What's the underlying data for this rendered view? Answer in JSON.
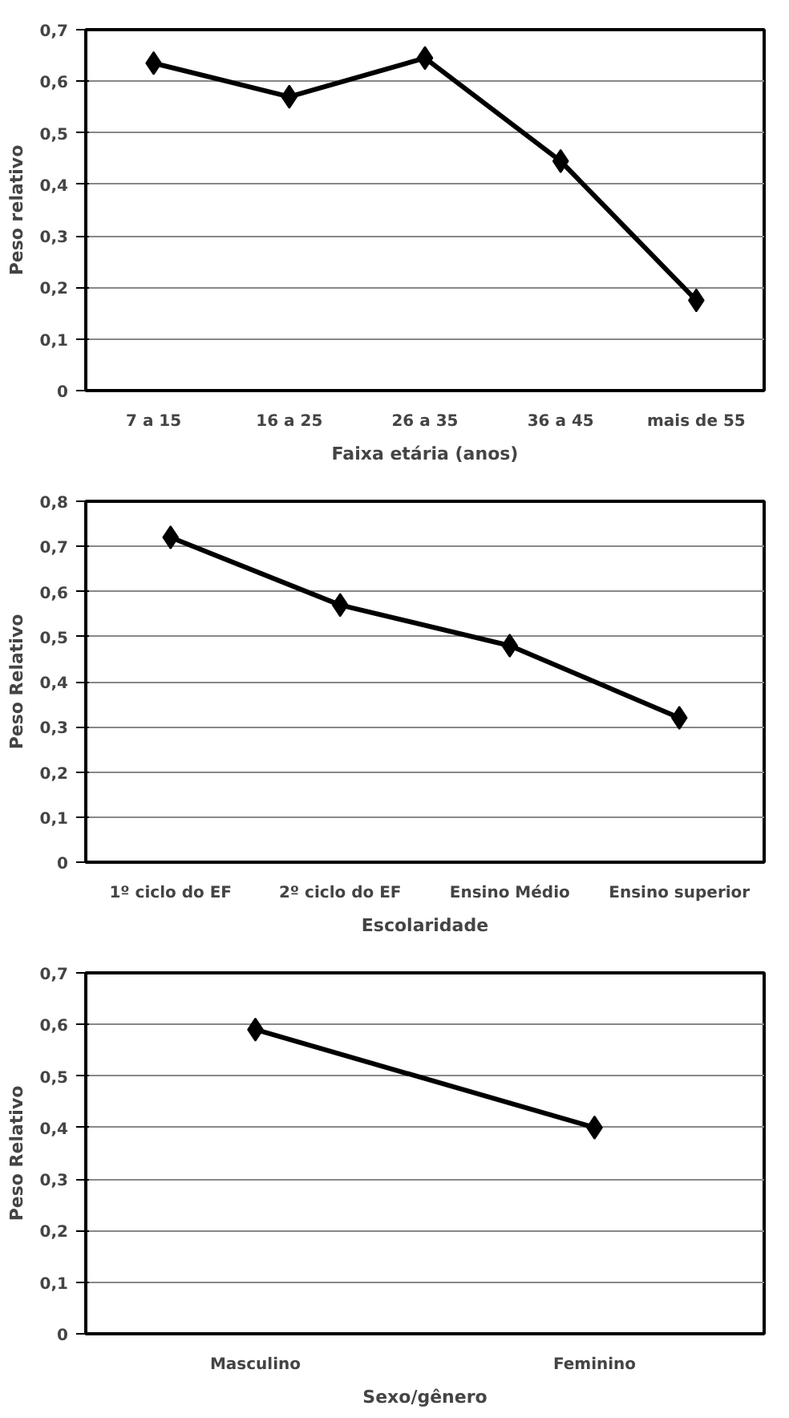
{
  "chart_data": [
    {
      "type": "line",
      "categories": [
        "7 a 15",
        "16 a 25",
        "26 a 35",
        "36 a 45",
        "mais de 55"
      ],
      "xlabel": "Faixa etária (anos)",
      "ylabel": "Peso relativo",
      "series": [
        {
          "color": "#000000",
          "values": [
            0.635,
            0.57,
            0.645,
            0.445,
            0.175
          ]
        }
      ],
      "ylim": [
        0,
        0.7
      ],
      "yticks": [
        {
          "value": 0,
          "label": "0"
        },
        {
          "value": 0.1,
          "label": "0,1"
        },
        {
          "value": 0.2,
          "label": "0,2"
        },
        {
          "value": 0.3,
          "label": "0,3"
        },
        {
          "value": 0.4,
          "label": "0,4"
        },
        {
          "value": 0.5,
          "label": "0,5"
        },
        {
          "value": 0.6,
          "label": "0,6"
        },
        {
          "value": 0.7,
          "label": "0,7"
        }
      ],
      "grid": "y",
      "marker": "diamond",
      "line_style": "solid"
    },
    {
      "type": "line",
      "categories": [
        "1º ciclo do EF",
        "2º ciclo do EF",
        "Ensino Médio",
        "Ensino superior"
      ],
      "xlabel": "Escolaridade",
      "ylabel": "Peso Relativo",
      "series": [
        {
          "color": "#000000",
          "values": [
            0.72,
            0.57,
            0.48,
            0.32
          ]
        }
      ],
      "ylim": [
        0,
        0.8
      ],
      "yticks": [
        {
          "value": 0,
          "label": "0"
        },
        {
          "value": 0.1,
          "label": "0,1"
        },
        {
          "value": 0.2,
          "label": "0,2"
        },
        {
          "value": 0.3,
          "label": "0,3"
        },
        {
          "value": 0.4,
          "label": "0,4"
        },
        {
          "value": 0.5,
          "label": "0,5"
        },
        {
          "value": 0.6,
          "label": "0,6"
        },
        {
          "value": 0.7,
          "label": "0,7"
        },
        {
          "value": 0.8,
          "label": "0,8"
        }
      ],
      "grid": "y",
      "marker": "diamond",
      "line_style": "solid"
    },
    {
      "type": "line",
      "categories": [
        "Masculino",
        "Feminino"
      ],
      "xlabel": "Sexo/gênero",
      "ylabel": "Peso Relativo",
      "series": [
        {
          "color": "#000000",
          "values": [
            0.59,
            0.4
          ]
        }
      ],
      "ylim": [
        0,
        0.7
      ],
      "yticks": [
        {
          "value": 0,
          "label": "0"
        },
        {
          "value": 0.1,
          "label": "0,1"
        },
        {
          "value": 0.2,
          "label": "0,2"
        },
        {
          "value": 0.3,
          "label": "0,3"
        },
        {
          "value": 0.4,
          "label": "0,4"
        },
        {
          "value": 0.5,
          "label": "0,5"
        },
        {
          "value": 0.6,
          "label": "0,6"
        },
        {
          "value": 0.7,
          "label": "0,7"
        }
      ],
      "grid": "y",
      "marker": "diamond",
      "line_style": "solid"
    }
  ]
}
